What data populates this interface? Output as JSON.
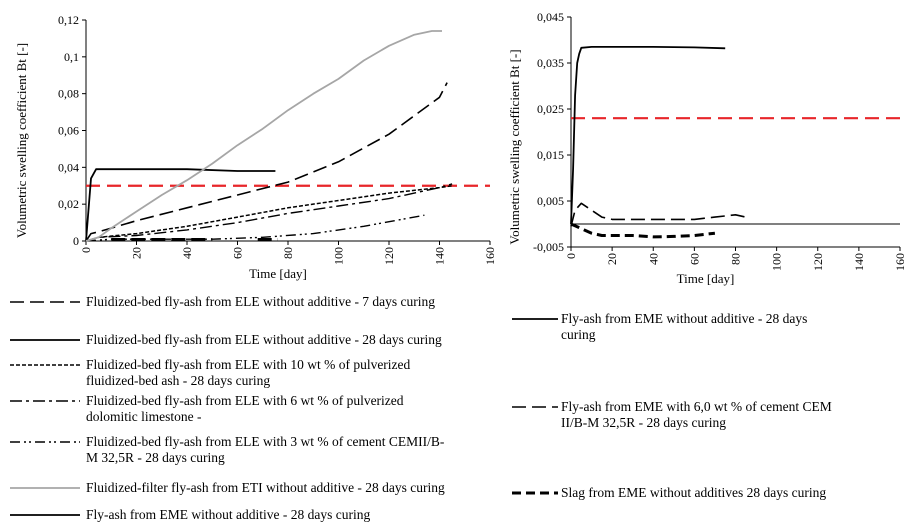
{
  "chart_data": [
    {
      "type": "line",
      "title": "",
      "ylabel": "Volumetric swelling coefficient Bt [-]",
      "xlabel": "Time [day]",
      "xlim": [
        0,
        160
      ],
      "ylim": [
        0,
        0.12
      ],
      "xticks": [
        "0",
        "20",
        "40",
        "60",
        "80",
        "100",
        "120",
        "140",
        "160"
      ],
      "yticks": [
        "0",
        "0,02",
        "0,04",
        "0,06",
        "0,08",
        "0,1",
        "0,12"
      ],
      "limit_line": {
        "y": 0.03,
        "x": [
          0,
          160
        ],
        "color": "#e8262a"
      },
      "series": [
        {
          "name": "Fluidized-bed fly-ash from ELE without additive - 7 days curing",
          "dash": "long",
          "color": "#000000",
          "x": [
            0,
            2,
            5,
            10,
            20,
            40,
            60,
            80,
            100,
            120,
            140,
            143
          ],
          "y": [
            0,
            0.004,
            0.005,
            0.007,
            0.011,
            0.018,
            0.025,
            0.032,
            0.043,
            0.058,
            0.078,
            0.086
          ]
        },
        {
          "name": "Fluidized-bed fly-ash from ELE without additive - 28 days curing",
          "dash": "solid",
          "color": "#000000",
          "x": [
            0,
            2,
            4,
            6,
            20,
            40,
            60,
            75
          ],
          "y": [
            0,
            0.034,
            0.039,
            0.039,
            0.039,
            0.039,
            0.038,
            0.038
          ]
        },
        {
          "name": "Fluidized-bed fly-ash from ELE with 10 wt % of pulverized fluidized-bed ash - 28 days curing",
          "dash": "short",
          "color": "#000000",
          "x": [
            0,
            5,
            20,
            40,
            60,
            80,
            100,
            120,
            140,
            145
          ],
          "y": [
            0,
            0.002,
            0.004,
            0.008,
            0.013,
            0.018,
            0.022,
            0.026,
            0.029,
            0.03
          ]
        },
        {
          "name": "Fluidized-bed fly-ash from ELE with 6 wt % of pulverized dolomitic limestone -",
          "dash": "dashdot",
          "color": "#000000",
          "x": [
            0,
            5,
            20,
            40,
            60,
            80,
            100,
            120,
            140,
            145
          ],
          "y": [
            0,
            0.002,
            0.003,
            0.006,
            0.01,
            0.015,
            0.019,
            0.023,
            0.029,
            0.031
          ]
        },
        {
          "name": "Fluidized-bed fly-ash from ELE with 3 wt % of cement CEMII/B-M 32,5R - 28 days curing",
          "dash": "dashdotdot",
          "color": "#000000",
          "x": [
            0,
            10,
            30,
            50,
            70,
            90,
            110,
            134
          ],
          "y": [
            0,
            0.001,
            0.001,
            0.001,
            0.002,
            0.004,
            0.008,
            0.014
          ]
        },
        {
          "name": "Fluidized-filter fly-ash from ETI without additive - 28 days curing",
          "dash": "solid",
          "color": "#a6a6a6",
          "x": [
            0,
            5,
            10,
            20,
            30,
            40,
            50,
            60,
            70,
            80,
            90,
            100,
            110,
            120,
            130,
            137,
            141
          ],
          "y": [
            0,
            0.002,
            0.007,
            0.016,
            0.025,
            0.033,
            0.042,
            0.052,
            0.061,
            0.071,
            0.08,
            0.088,
            0.098,
            0.106,
            0.112,
            0.114,
            0.114
          ]
        },
        {
          "name": "Fly-ash from EME without additive - 28 days curing",
          "dash": "longheavy",
          "color": "#000000",
          "x": [
            10,
            20,
            30,
            40,
            50
          ],
          "y": [
            0.0008,
            0.0008,
            0.0008,
            0.0008,
            0.0008
          ]
        },
        {
          "name": "",
          "dash": "longheavy",
          "color": "#000000",
          "x": [
            68,
            72,
            76
          ],
          "y": [
            0.0008,
            0.0008,
            0.0008
          ]
        }
      ]
    },
    {
      "type": "line",
      "title": "",
      "ylabel": "Volumetric swelling coefficient Bt [-]",
      "xlabel": "Time [day]",
      "xlim": [
        0,
        160
      ],
      "ylim": [
        -0.005,
        0.045
      ],
      "xticks": [
        "0",
        "20",
        "40",
        "60",
        "80",
        "100",
        "120",
        "140",
        "160"
      ],
      "yticks": [
        "-0,005",
        "0,005",
        "0,015",
        "0,025",
        "0,035",
        "0,045"
      ],
      "limit_line": {
        "y": 0.023,
        "x": [
          0,
          160
        ],
        "color": "#e8262a"
      },
      "series": [
        {
          "name": "Fly-ash from EME without additive - 28 days curing",
          "dash": "solid",
          "color": "#000000",
          "x": [
            0,
            1,
            2,
            3,
            4,
            5,
            10,
            20,
            40,
            60,
            75
          ],
          "y": [
            0,
            0.012,
            0.028,
            0.035,
            0.037,
            0.0383,
            0.0385,
            0.0385,
            0.0385,
            0.0384,
            0.0382
          ]
        },
        {
          "name": "Fly-ash from EME with 6,0 wt % of cement CEM II/B-M 32,5R - 28 days curing",
          "dash": "long",
          "color": "#000000",
          "x": [
            0,
            2,
            5,
            10,
            15,
            20,
            40,
            60,
            70,
            80,
            85
          ],
          "y": [
            -0.0005,
            0.003,
            0.0045,
            0.003,
            0.0015,
            0.001,
            0.001,
            0.001,
            0.0015,
            0.002,
            0.0015
          ]
        },
        {
          "name": "Slag from EME without additives 28 days curing",
          "dash": "heavy",
          "color": "#000000",
          "x": [
            0,
            5,
            10,
            15,
            20,
            30,
            40,
            50,
            60,
            70
          ],
          "y": [
            0,
            -0.001,
            -0.002,
            -0.0025,
            -0.0025,
            -0.0025,
            -0.0028,
            -0.0027,
            -0.0025,
            -0.002
          ]
        },
        {
          "name": "",
          "dash": "solid-thin",
          "color": "#000000",
          "x": [
            0,
            160
          ],
          "y": [
            0,
            0
          ]
        }
      ]
    }
  ],
  "legend_left": [
    {
      "text": [
        "Fluidized-bed fly-ash from ELE without additive - 7 days curing"
      ],
      "dash": "long",
      "color": "#000000"
    },
    {
      "text": [
        "Fluidized-bed fly-ash from ELE without additive - 28 days curing"
      ],
      "dash": "solid",
      "color": "#000000"
    },
    {
      "text": [
        "Fluidized-bed fly-ash from ELE with 10 wt % of pulverized",
        "fluidized-bed ash - 28 days curing"
      ],
      "dash": "short",
      "color": "#000000"
    },
    {
      "text": [
        "Fluidized-bed fly-ash from ELE with 6 wt % of pulverized",
        "dolomitic limestone -"
      ],
      "dash": "dashdot",
      "color": "#000000"
    },
    {
      "text": [
        "Fluidized-bed fly-ash from ELE with 3 wt % of cement CEMII/B-",
        "M 32,5R - 28 days curing"
      ],
      "dash": "dashdotdot",
      "color": "#000000"
    },
    {
      "text": [
        "Fluidized-filter fly-ash from ETI without additive - 28 days curing"
      ],
      "dash": "solid",
      "color": "#a6a6a6"
    },
    {
      "text": [
        "Fly-ash from EME without additive - 28 days curing"
      ],
      "dash": "solid",
      "color": "#000000"
    }
  ],
  "legend_right": [
    {
      "text": [
        "Fly-ash from EME without additive - 28 days",
        "curing"
      ],
      "dash": "solid",
      "color": "#000000"
    },
    {
      "text": [
        "Fly-ash from EME with 6,0 wt % of cement CEM",
        "II/B-M 32,5R - 28 days curing"
      ],
      "dash": "long",
      "color": "#000000"
    },
    {
      "text": [
        "Slag from EME without additives 28 days curing"
      ],
      "dash": "heavy",
      "color": "#000000"
    }
  ]
}
